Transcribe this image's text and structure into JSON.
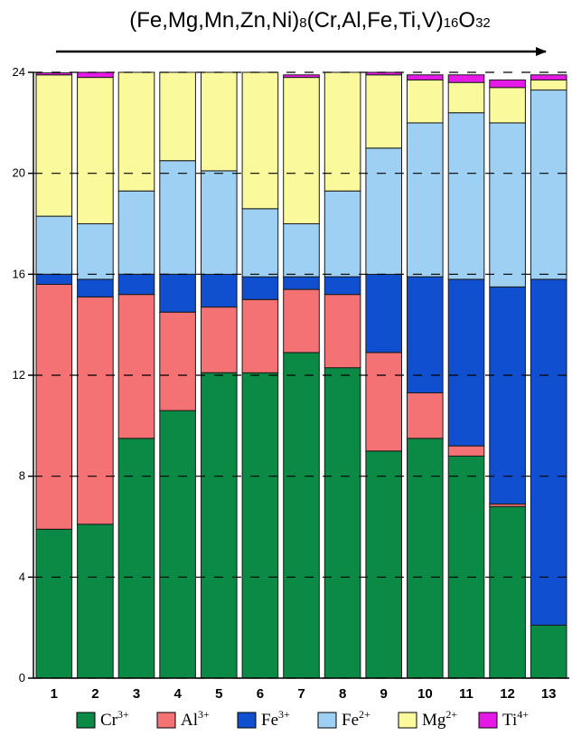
{
  "chart_data": {
    "type": "bar",
    "stacked": true,
    "title_segments": [
      {
        "text": "(Fe,Mg,Mn,Zn,Ni)",
        "sub": false
      },
      {
        "text": "8",
        "sub": true
      },
      {
        "text": "(Cr,Al,Fe,Ti,V)",
        "sub": false
      },
      {
        "text": "16",
        "sub": true
      },
      {
        "text": "O",
        "sub": false
      },
      {
        "text": "32",
        "sub": true
      }
    ],
    "categories": [
      "1",
      "2",
      "3",
      "4",
      "5",
      "6",
      "7",
      "8",
      "9",
      "10",
      "11",
      "12",
      "13"
    ],
    "yticks": [
      "0",
      "4",
      "8",
      "12",
      "16",
      "20",
      "24"
    ],
    "ylim": [
      0,
      24
    ],
    "series": [
      {
        "base": "Cr",
        "charge": "3+",
        "color": "#0b8a45",
        "values": [
          5.9,
          6.1,
          9.5,
          10.6,
          12.1,
          12.1,
          12.9,
          12.3,
          9.0,
          9.5,
          8.8,
          6.8,
          2.1
        ]
      },
      {
        "base": "Al",
        "charge": "3+",
        "color": "#f47273",
        "values": [
          9.7,
          9.0,
          5.7,
          3.9,
          2.6,
          2.9,
          2.5,
          2.9,
          3.9,
          1.8,
          0.4,
          0.1,
          0.0
        ]
      },
      {
        "base": "Fe",
        "charge": "3+",
        "color": "#0f4fd0",
        "values": [
          0.4,
          0.7,
          0.8,
          1.5,
          1.3,
          0.9,
          0.5,
          0.7,
          3.1,
          4.6,
          6.6,
          8.6,
          13.7
        ]
      },
      {
        "base": "Fe",
        "charge": "2+",
        "color": "#9dd0f2",
        "values": [
          2.3,
          2.2,
          3.3,
          4.5,
          4.1,
          2.7,
          2.1,
          3.4,
          5.0,
          6.1,
          6.6,
          6.5,
          7.5
        ]
      },
      {
        "base": "Mg",
        "charge": "2+",
        "color": "#fafa9c",
        "values": [
          5.6,
          5.8,
          4.7,
          3.5,
          3.9,
          5.4,
          5.8,
          4.7,
          2.9,
          1.7,
          1.2,
          1.4,
          0.4
        ]
      },
      {
        "base": "Ti",
        "charge": "4+",
        "color": "#e61ae6",
        "values": [
          0.08,
          0.2,
          0.0,
          0.0,
          0.0,
          0.0,
          0.1,
          0.0,
          0.1,
          0.2,
          0.3,
          0.3,
          0.2
        ]
      }
    ],
    "grid": false,
    "legend_position": "bottom"
  }
}
